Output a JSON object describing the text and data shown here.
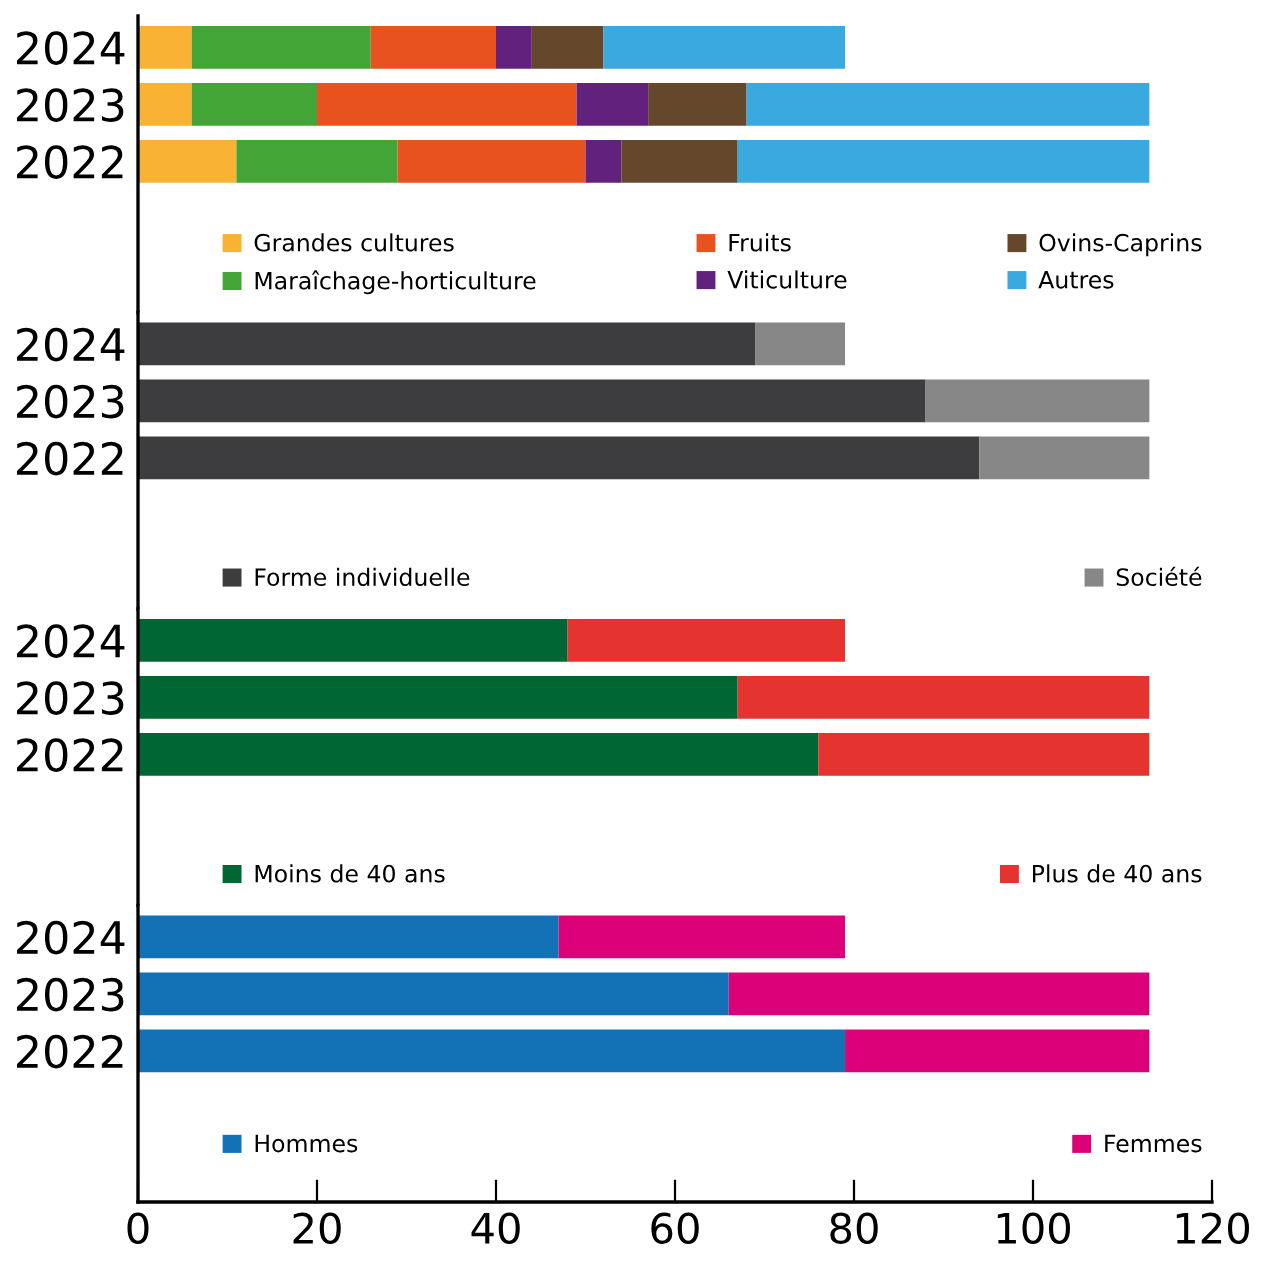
{
  "chart_data": [
    {
      "type": "bar",
      "orientation": "horizontal",
      "stacked": true,
      "categories": [
        "2024",
        "2023",
        "2022"
      ],
      "xlim": [
        0,
        120
      ],
      "tick_labels": "y",
      "legend": "bottom",
      "series": [
        {
          "name": "Grandes cultures",
          "color": "#f9b233",
          "values": [
            6,
            6,
            11
          ]
        },
        {
          "name": "Maraîchage-horticulture",
          "color": "#42a535",
          "values": [
            20,
            14,
            18
          ]
        },
        {
          "name": "Fruits",
          "color": "#e8521e",
          "values": [
            14,
            29,
            21
          ]
        },
        {
          "name": "Viticulture",
          "color": "#62217d",
          "values": [
            4,
            8,
            4
          ]
        },
        {
          "name": "Ovins-Caprins",
          "color": "#65482b",
          "values": [
            8,
            11,
            13
          ]
        },
        {
          "name": "Autres",
          "color": "#3aa9df",
          "values": [
            27,
            45,
            46
          ]
        }
      ]
    },
    {
      "type": "bar",
      "orientation": "horizontal",
      "stacked": true,
      "categories": [
        "2024",
        "2023",
        "2022"
      ],
      "xlim": [
        0,
        120
      ],
      "tick_labels": "y",
      "legend": "bottom",
      "series": [
        {
          "name": "Forme individuelle",
          "color": "#3d3d3f",
          "values": [
            69,
            88,
            94
          ]
        },
        {
          "name": "Société",
          "color": "#878787",
          "values": [
            10,
            25,
            19
          ]
        }
      ]
    },
    {
      "type": "bar",
      "orientation": "horizontal",
      "stacked": true,
      "categories": [
        "2024",
        "2023",
        "2022"
      ],
      "xlim": [
        0,
        120
      ],
      "tick_labels": "y",
      "legend": "bottom",
      "series": [
        {
          "name": "Moins de 40 ans",
          "color": "#006633",
          "values": [
            48,
            67,
            76
          ]
        },
        {
          "name": "Plus de 40 ans",
          "color": "#e5332f",
          "values": [
            31,
            46,
            37
          ]
        }
      ]
    },
    {
      "type": "bar",
      "orientation": "horizontal",
      "stacked": true,
      "categories": [
        "2024",
        "2023",
        "2022"
      ],
      "xlim": [
        0,
        120
      ],
      "xticks": [
        0,
        20,
        40,
        60,
        80,
        100,
        120
      ],
      "legend": "bottom",
      "series": [
        {
          "name": "Hommes",
          "color": "#1272b5",
          "values": [
            47,
            66,
            79
          ]
        },
        {
          "name": "Femmes",
          "color": "#dc0079",
          "values": [
            32,
            47,
            34
          ]
        }
      ]
    }
  ]
}
